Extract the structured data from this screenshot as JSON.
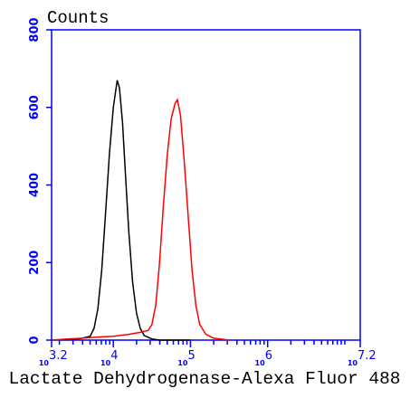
{
  "chart_data": {
    "type": "line",
    "title": "Counts",
    "x_label": "Lactate Dehydrogenase-Alexa Fluor 488",
    "xlim": [
      3.2,
      7.2
    ],
    "xticks": [
      3.2,
      4,
      5,
      6,
      7.2
    ],
    "xtick_base": "10",
    "minor_xticks": [
      3.301,
      3.477,
      3.602,
      3.699,
      3.778,
      3.845,
      3.903,
      3.954,
      4.301,
      4.477,
      4.602,
      4.699,
      4.778,
      4.845,
      4.903,
      4.954,
      5.301,
      5.477,
      5.602,
      5.699,
      5.778,
      5.845,
      5.903,
      5.954,
      6.301,
      6.477,
      6.602,
      6.699,
      6.778,
      6.845,
      6.903,
      6.954,
      7.0
    ],
    "ylim": [
      0,
      800
    ],
    "yticks": [
      0,
      200,
      400,
      600,
      800
    ],
    "axis_color": "#0000ff",
    "series": [
      {
        "color": "#000000",
        "x": [
          3.2,
          3.5,
          3.6,
          3.7,
          3.75,
          3.8,
          3.85,
          3.9,
          3.95,
          4.0,
          4.05,
          4.08,
          4.12,
          4.16,
          4.2,
          4.25,
          4.3,
          4.35,
          4.4,
          4.5,
          4.6,
          5.0
        ],
        "values": [
          0,
          2,
          5,
          10,
          30,
          80,
          180,
          330,
          480,
          600,
          670,
          650,
          560,
          420,
          280,
          150,
          70,
          30,
          12,
          3,
          0,
          0
        ]
      },
      {
        "color": "#ff0000",
        "x": [
          3.2,
          3.4,
          3.6,
          3.8,
          4.0,
          4.2,
          4.35,
          4.45,
          4.5,
          4.55,
          4.6,
          4.65,
          4.7,
          4.75,
          4.8,
          4.83,
          4.87,
          4.92,
          4.97,
          5.02,
          5.07,
          5.12,
          5.2,
          5.3,
          5.5
        ],
        "values": [
          0,
          3,
          5,
          8,
          10,
          15,
          20,
          25,
          40,
          90,
          200,
          350,
          480,
          570,
          610,
          620,
          580,
          460,
          320,
          180,
          90,
          40,
          15,
          5,
          0
        ]
      }
    ]
  }
}
